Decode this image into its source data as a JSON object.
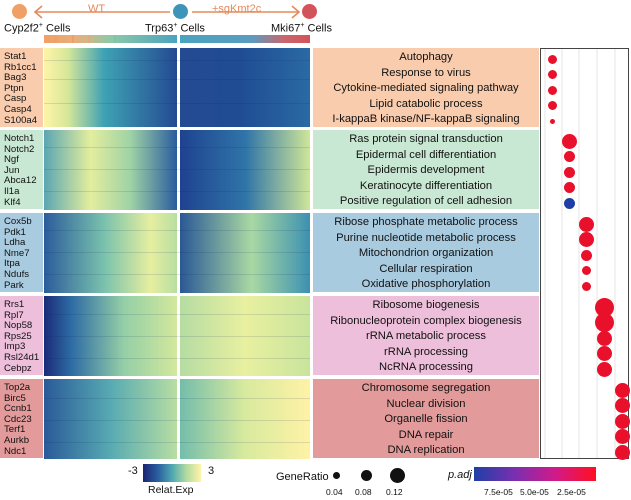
{
  "header": {
    "cell_left": "Cyp2f2",
    "cell_left_sup": "+",
    "cell_left_suffix": " Cells",
    "cell_mid": "Trp63",
    "cell_mid_sup": "+",
    "cell_mid_suffix": " Cells",
    "cell_right": "Mki67",
    "cell_right_sup": "+",
    "cell_right_suffix": " Cells",
    "arrow_left_label": "WT",
    "arrow_right_label": "+sgKmt2c",
    "colors": {
      "cyp": "#f0a066",
      "trp": "#3e94b8",
      "mki": "#d2545a",
      "arrow": "#e58a5a"
    }
  },
  "clusters": [
    {
      "genes": [
        "Stat1",
        "Rb1cc1",
        "Bag3",
        "Ptpn",
        "Casp",
        "Casp4",
        "S100a4"
      ],
      "terms": [
        "Autophagy",
        "Response to virus",
        "Cytokine-mediated signaling pathway",
        "Lipid catabolic process",
        "I-kappaB kinase/NF-kappaB signaling"
      ],
      "bg": "#f9ccae",
      "color": "#f0b590"
    },
    {
      "genes": [
        "Notch1",
        "Notch2",
        "Ngf",
        "Jun",
        "Abca12",
        "Il1a",
        "Klf4"
      ],
      "terms": [
        "Ras protein signal transduction",
        "Epidermal cell differentiation",
        "Epidermis development",
        "Keratinocyte differentiation",
        "Positive regulation of cell adhesion"
      ],
      "bg": "#c9e8d3",
      "color": "#9fd2b0"
    },
    {
      "genes": [
        "Cox5b",
        "Pdk1",
        "Ldha",
        "Nme7",
        "Itpa",
        "Ndufs",
        "Park"
      ],
      "terms": [
        "Ribose phosphate metabolic process",
        "Purine nucleotide metabolic process",
        "Mitochondrion organization",
        "Cellular respiration",
        "Oxidative phosphorylation"
      ],
      "bg": "#a9cbe0",
      "color": "#6fa6c6"
    },
    {
      "genes": [
        "Rrs1",
        "Rpl7",
        "Nop58",
        "Rps25",
        "Imp3",
        "Rsl24d1",
        "Cebpz"
      ],
      "terms": [
        "Ribosome biogenesis",
        "Ribonucleoprotein complex biogenesis",
        "rRNA metabolic process",
        "rRNA processing",
        "NcRNA processing"
      ],
      "bg": "#eebfdb",
      "color": "#d98fbe"
    },
    {
      "genes": [
        "Top2a",
        "Birc5",
        "Ccnb1",
        "Cdc23",
        "Terf1",
        "Aurkb",
        "Ndc1"
      ],
      "terms": [
        "Chromosome segregation",
        "Nuclear division",
        "Organelle fission",
        "DNA repair",
        "DNA replication"
      ],
      "bg": "#e29b9a",
      "color": "#c97073"
    }
  ],
  "dots": [
    [
      {
        "size": "small",
        "col": 0,
        "color": "#e8102a"
      },
      {
        "size": "small",
        "col": 0,
        "color": "#e8102a"
      },
      {
        "size": "small",
        "col": 0,
        "color": "#e8102a"
      },
      {
        "size": "small",
        "col": 0,
        "color": "#e8102a"
      },
      {
        "size": "tiny",
        "col": 0,
        "color": "#e8102a"
      }
    ],
    [
      {
        "size": "large",
        "col": 1,
        "color": "#e8102a"
      },
      {
        "size": "medium",
        "col": 1,
        "color": "#e8102a"
      },
      {
        "size": "medium",
        "col": 1,
        "color": "#e8102a"
      },
      {
        "size": "medium",
        "col": 1,
        "color": "#e8102a"
      },
      {
        "size": "medium",
        "col": 1,
        "color": "#1f3fa6"
      }
    ],
    [
      {
        "size": "large",
        "col": 2,
        "color": "#e8102a"
      },
      {
        "size": "large",
        "col": 2,
        "color": "#e8102a"
      },
      {
        "size": "medium",
        "col": 2,
        "color": "#e8102a"
      },
      {
        "size": "small",
        "col": 2,
        "color": "#e8102a"
      },
      {
        "size": "small",
        "col": 2,
        "color": "#e8102a"
      }
    ],
    [
      {
        "size": "xlarge",
        "col": 3,
        "color": "#e8102a"
      },
      {
        "size": "xlarge",
        "col": 3,
        "color": "#e8102a"
      },
      {
        "size": "large",
        "col": 3,
        "color": "#e8102a"
      },
      {
        "size": "large",
        "col": 3,
        "color": "#e8102a"
      },
      {
        "size": "large",
        "col": 3,
        "color": "#e8102a"
      }
    ],
    [
      {
        "size": "large",
        "col": 4,
        "color": "#e8102a"
      },
      {
        "size": "large",
        "col": 4,
        "color": "#e8102a"
      },
      {
        "size": "large",
        "col": 4,
        "color": "#e8102a"
      },
      {
        "size": "large",
        "col": 4,
        "color": "#e8102a"
      },
      {
        "size": "large",
        "col": 4,
        "color": "#e8102a"
      }
    ]
  ],
  "legend": {
    "heat_min": "-3",
    "heat_max": "3",
    "heat_label": "Relat.Exp",
    "generatio_title": "GeneRatio",
    "generatio_ticks": [
      "0.04",
      "0.08",
      "0.12"
    ],
    "padj_title": "p.adj",
    "padj_ticks": [
      "7.5e-05",
      "5.0e-05",
      "2.5e-05"
    ]
  }
}
